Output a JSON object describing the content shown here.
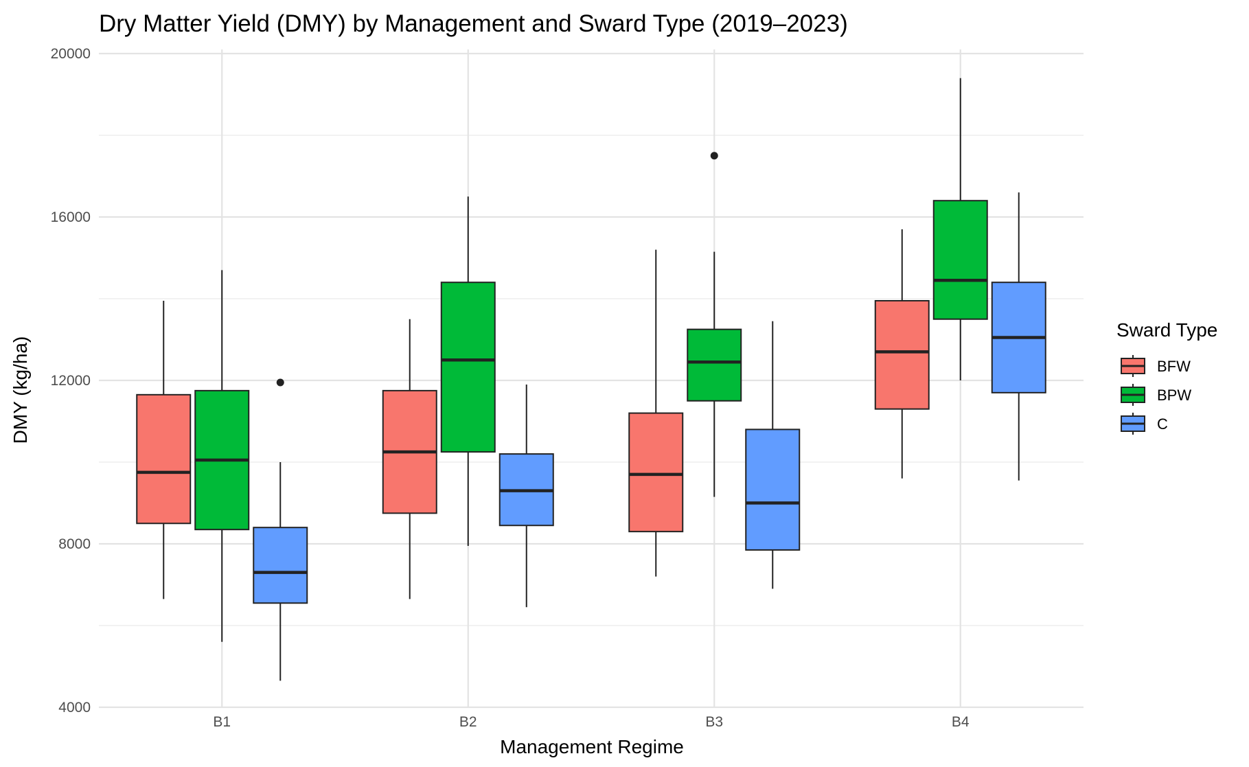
{
  "chart_data": {
    "type": "boxplot",
    "title": "Dry Matter Yield (DMY) by Management and Sward Type (2019–2023)",
    "xlabel": "Management Regime",
    "ylabel": "DMY (kg/ha)",
    "ylim": [
      4000,
      20000
    ],
    "yticks": [
      4000,
      8000,
      12000,
      16000,
      20000
    ],
    "categories": [
      "B1",
      "B2",
      "B3",
      "B4"
    ],
    "legend": {
      "title": "Sward Type",
      "position": "right"
    },
    "grid": true,
    "series": [
      {
        "name": "BFW",
        "color": "#F8766D",
        "boxes": [
          {
            "category": "B1",
            "whisker_low": 6650,
            "q1": 8500,
            "median": 9750,
            "q3": 11650,
            "whisker_high": 13950,
            "outliers": []
          },
          {
            "category": "B2",
            "whisker_low": 6650,
            "q1": 8750,
            "median": 10250,
            "q3": 11750,
            "whisker_high": 13500,
            "outliers": []
          },
          {
            "category": "B3",
            "whisker_low": 7200,
            "q1": 8300,
            "median": 9700,
            "q3": 11200,
            "whisker_high": 15200,
            "outliers": []
          },
          {
            "category": "B4",
            "whisker_low": 9600,
            "q1": 11300,
            "median": 12700,
            "q3": 13950,
            "whisker_high": 15700,
            "outliers": []
          }
        ]
      },
      {
        "name": "BPW",
        "color": "#00BA38",
        "boxes": [
          {
            "category": "B1",
            "whisker_low": 5600,
            "q1": 8350,
            "median": 10050,
            "q3": 11750,
            "whisker_high": 14700,
            "outliers": []
          },
          {
            "category": "B2",
            "whisker_low": 7950,
            "q1": 10250,
            "median": 12500,
            "q3": 14400,
            "whisker_high": 16500,
            "outliers": []
          },
          {
            "category": "B3",
            "whisker_low": 9150,
            "q1": 11500,
            "median": 12450,
            "q3": 13250,
            "whisker_high": 15150,
            "outliers": [
              17500
            ]
          },
          {
            "category": "B4",
            "whisker_low": 12000,
            "q1": 13500,
            "median": 14450,
            "q3": 16400,
            "whisker_high": 19400,
            "outliers": []
          }
        ]
      },
      {
        "name": "C",
        "color": "#619CFF",
        "boxes": [
          {
            "category": "B1",
            "whisker_low": 4650,
            "q1": 6550,
            "median": 7300,
            "q3": 8400,
            "whisker_high": 10000,
            "outliers": [
              11950
            ]
          },
          {
            "category": "B2",
            "whisker_low": 6450,
            "q1": 8450,
            "median": 9300,
            "q3": 10200,
            "whisker_high": 11900,
            "outliers": []
          },
          {
            "category": "B3",
            "whisker_low": 6900,
            "q1": 7850,
            "median": 9000,
            "q3": 10800,
            "whisker_high": 13450,
            "outliers": []
          },
          {
            "category": "B4",
            "whisker_low": 9550,
            "q1": 11700,
            "median": 13050,
            "q3": 14400,
            "whisker_high": 16600,
            "outliers": []
          }
        ]
      }
    ]
  }
}
